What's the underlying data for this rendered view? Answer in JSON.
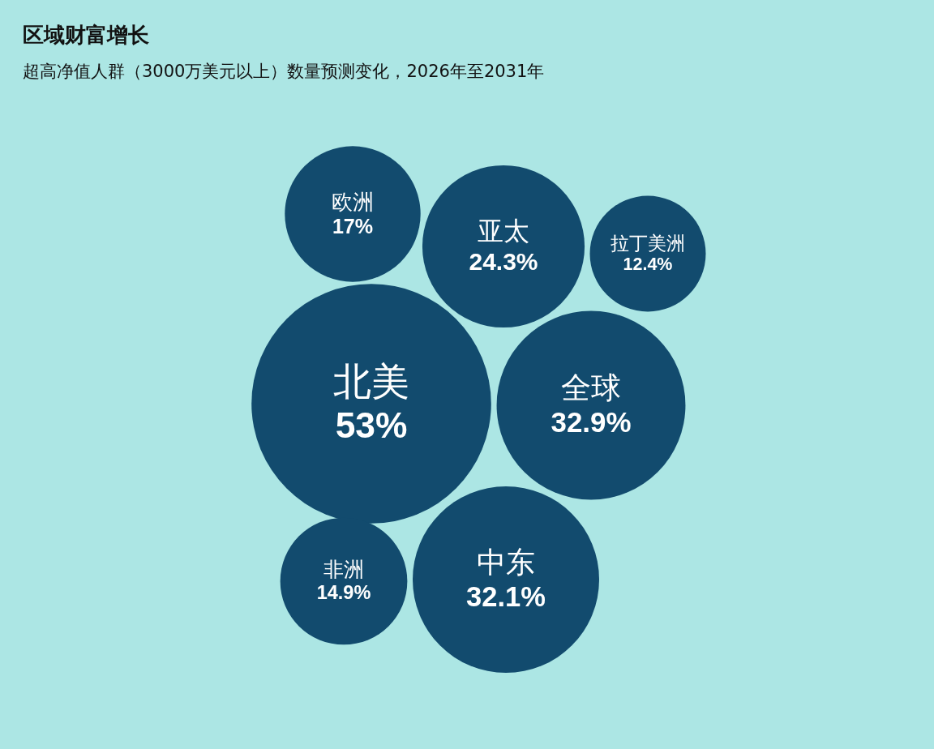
{
  "chart_data": {
    "type": "other",
    "title": "区域财富增长",
    "subtitle": "超高净值人群（3000万美元以上）数量预测变化，2026年至2031年",
    "categories": [
      "欧洲",
      "亚太",
      "拉丁美洲",
      "北美",
      "全球",
      "非洲",
      "中东"
    ],
    "values": [
      17,
      24.3,
      12.4,
      53,
      32.9,
      14.9,
      32.1
    ],
    "value_labels": [
      "17%",
      "24.3%",
      "12.4%",
      "53%",
      "32.9%",
      "14.9%",
      "32.1%"
    ],
    "colors": [
      "#124b6e",
      "#124b6e",
      "#124b6e",
      "#124b6e",
      "#124b6e",
      "#124b6e",
      "#124b6e"
    ]
  }
}
